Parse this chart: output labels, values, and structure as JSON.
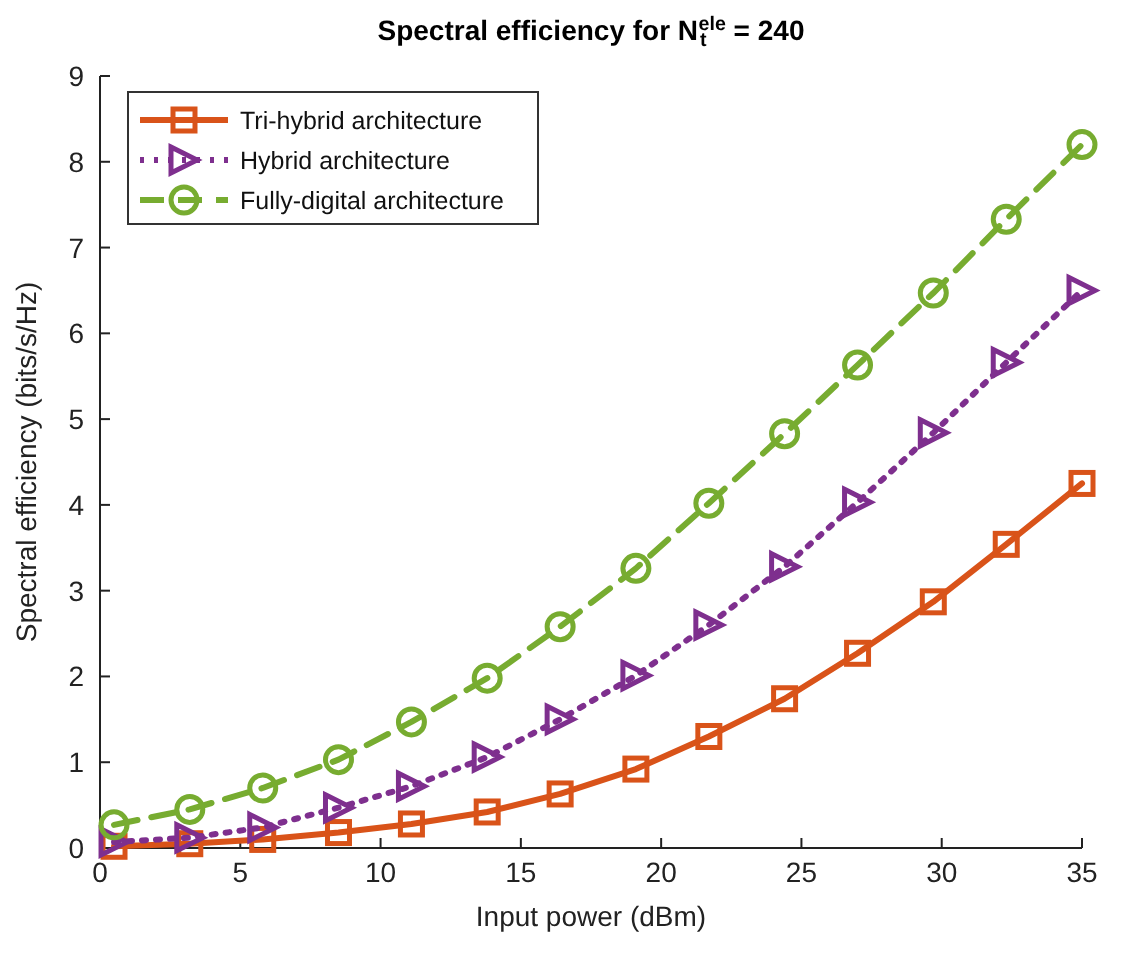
{
  "chart_data": {
    "type": "line",
    "title": "Spectral efficiency for N$_{t}$$^{ele}$ = 240",
    "xlabel": "Input power (dBm)",
    "ylabel": "Spectral efficiency (bits/s/Hz)",
    "x": [
      0.5,
      3.2,
      5.8,
      8.5,
      11.1,
      13.8,
      16.4,
      19.1,
      21.7,
      24.4,
      27.0,
      29.7,
      32.3,
      35
    ],
    "xlim": [
      0,
      35
    ],
    "xticks": [
      0,
      5,
      10,
      15,
      20,
      25,
      30,
      35
    ],
    "ylim": [
      0,
      9
    ],
    "yticks": [
      0,
      1,
      2,
      3,
      4,
      5,
      6,
      7,
      8,
      9
    ],
    "grid": false,
    "legend": "top left",
    "series": [
      {
        "name": "Tri-hybrid architecture",
        "color": "#d95319",
        "marker": "square",
        "line_style": "solid",
        "values": [
          0.02,
          0.05,
          0.1,
          0.18,
          0.28,
          0.42,
          0.63,
          0.92,
          1.3,
          1.74,
          2.27,
          2.87,
          3.54,
          4.25
        ]
      },
      {
        "name": "Hybrid architecture",
        "color": "#7e2f8e",
        "marker": "triangle",
        "line_style": "dotted",
        "values": [
          0.07,
          0.12,
          0.24,
          0.47,
          0.72,
          1.06,
          1.5,
          2.01,
          2.6,
          3.28,
          4.03,
          4.84,
          5.66,
          6.5
        ]
      },
      {
        "name": "Fully-digital architecture",
        "color": "#77ac30",
        "marker": "circle",
        "line_style": "dashed",
        "values": [
          0.27,
          0.45,
          0.7,
          1.03,
          1.47,
          1.98,
          2.58,
          3.26,
          4.02,
          4.83,
          5.63,
          6.47,
          7.33,
          8.2
        ]
      }
    ]
  }
}
